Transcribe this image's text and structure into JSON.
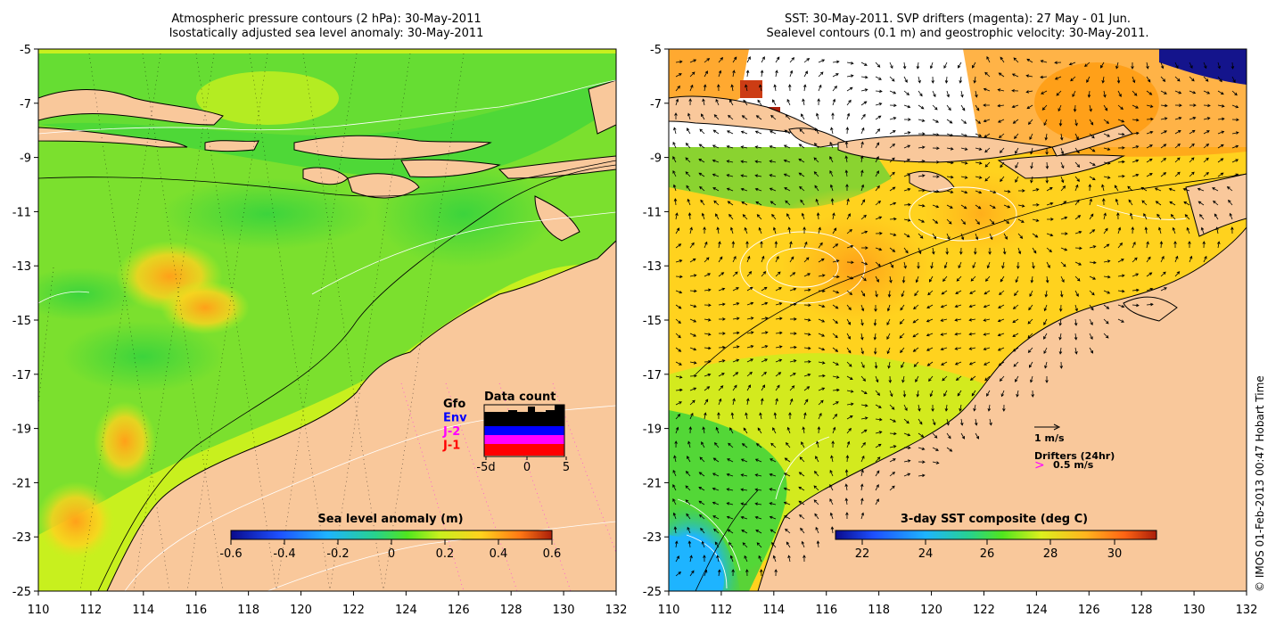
{
  "left_map": {
    "title_line1": "Atmospheric pressure contours (2 hPa): 30-May-2011",
    "title_line2": "Isostatically adjusted sea level anomaly: 30-May-2011",
    "y_ticks": [
      "-5",
      "-7",
      "-9",
      "-11",
      "-13",
      "-15",
      "-17",
      "-19",
      "-21",
      "-23",
      "-25"
    ],
    "x_ticks": [
      "110",
      "112",
      "114",
      "116",
      "118",
      "120",
      "122",
      "124",
      "126",
      "128",
      "130",
      "132"
    ],
    "colorbar_label": "Sea level anomaly (m)",
    "colorbar_ticks": [
      "-0.6",
      "-0.4",
      "-0.2",
      "0",
      "0.2",
      "0.4",
      "0.6"
    ],
    "data_count_title": "Data count",
    "legend": [
      {
        "label": "Gfo",
        "color": "#000000"
      },
      {
        "label": "Env",
        "color": "#0000ff"
      },
      {
        "label": "J-2",
        "color": "#ff00ff"
      },
      {
        "label": "J-1",
        "color": "#ff0000"
      }
    ],
    "hist_ticks": [
      "-5d",
      "0",
      "5"
    ]
  },
  "right_map": {
    "title_line1": "SST: 30-May-2011. SVP drifters (magenta): 27 May - 01 Jun.",
    "title_line2": "Sealevel contours (0.1 m) and geostrophic velocity: 30-May-2011.",
    "y_ticks": [
      "-5",
      "-7",
      "-9",
      "-11",
      "-13",
      "-15",
      "-17",
      "-19",
      "-21",
      "-23",
      "-25"
    ],
    "x_ticks": [
      "110",
      "112",
      "114",
      "116",
      "118",
      "120",
      "122",
      "124",
      "126",
      "128",
      "130",
      "132"
    ],
    "colorbar_label": "3-day SST composite (deg C)",
    "colorbar_ticks": [
      "22",
      "24",
      "26",
      "28",
      "30"
    ],
    "velocity_scale": "1 m/s",
    "drifters_label": "Drifters (24hr)",
    "drifter_speed": "0.5 m/s",
    "drifter_symbol": ">"
  },
  "copyright": "© IMOS 01-Feb-2013 00:47 Hobart Time",
  "colors": {
    "land": "#f9c89b",
    "sea_green": "#3cd43c",
    "sea_yellow": "#c8f01e",
    "sea_orange": "#ffa019",
    "cold_blue": "#1e8cff"
  }
}
